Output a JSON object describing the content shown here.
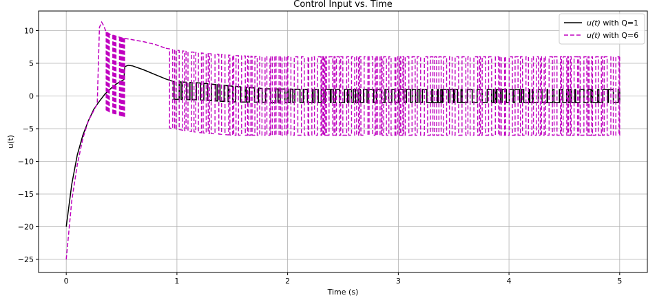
{
  "chart_data": {
    "type": "line",
    "title": "Control Input vs. Time",
    "xlabel": "Time (s)",
    "ylabel": "u(t)",
    "xlim": [
      -0.25,
      5.25
    ],
    "ylim": [
      -27,
      13
    ],
    "xticks": [
      0,
      1,
      2,
      3,
      4,
      5
    ],
    "yticks": [
      10,
      5,
      0,
      -5,
      -10,
      -15,
      -20,
      -25
    ],
    "ytick_labels": [
      "10",
      "5",
      "0",
      "−5",
      "−10",
      "−15",
      "−20",
      "−25"
    ],
    "grid": true,
    "legend_position": "top-right",
    "series": [
      {
        "name": "u(t) with Q=1",
        "legend_math": "u(t)",
        "legend_suffix": " with Q=1",
        "color": "#000000",
        "style": "solid",
        "smooth_points": [
          [
            0,
            -20
          ],
          [
            0.05,
            -13.5
          ],
          [
            0.1,
            -9
          ],
          [
            0.15,
            -6
          ],
          [
            0.2,
            -3.8
          ],
          [
            0.25,
            -2
          ],
          [
            0.3,
            -0.8
          ],
          [
            0.35,
            0.3
          ],
          [
            0.4,
            1.1
          ],
          [
            0.45,
            1.8
          ],
          [
            0.5,
            2.3
          ],
          [
            0.52,
            2.5
          ],
          [
            0.53,
            4.5
          ],
          [
            0.56,
            4.7
          ],
          [
            0.6,
            4.6
          ],
          [
            0.7,
            4
          ],
          [
            0.8,
            3.3
          ],
          [
            0.9,
            2.6
          ],
          [
            0.97,
            2.2
          ]
        ],
        "switching_envelope": {
          "t_start": 0.97,
          "t_end": 5.0,
          "upper": [
            [
              0.97,
              2.2
            ],
            [
              1.2,
              2.0
            ],
            [
              1.5,
              1.5
            ],
            [
              1.8,
              1.1
            ],
            [
              2.2,
              1.0
            ],
            [
              5.0,
              1.0
            ]
          ],
          "lower": [
            [
              0.97,
              -0.5
            ],
            [
              1.2,
              -0.6
            ],
            [
              1.5,
              -0.9
            ],
            [
              2.0,
              -1.0
            ],
            [
              5.0,
              -1.0
            ]
          ]
        }
      },
      {
        "name": "u(t) with Q=6",
        "legend_math": "u(t)",
        "legend_suffix": " with Q=6",
        "color": "#bf00bf",
        "style": "dashed",
        "smooth_points": [
          [
            0,
            -25
          ],
          [
            0.05,
            -16
          ],
          [
            0.1,
            -10.5
          ],
          [
            0.15,
            -6.5
          ],
          [
            0.2,
            -3.8
          ],
          [
            0.25,
            -2.2
          ],
          [
            0.28,
            -1.2
          ],
          [
            0.3,
            10.5
          ],
          [
            0.32,
            11.3
          ],
          [
            0.34,
            10.7
          ],
          [
            0.36,
            9.8
          ],
          [
            0.4,
            9.4
          ],
          [
            0.5,
            8.9
          ],
          [
            0.6,
            8.6
          ],
          [
            0.7,
            8.3
          ],
          [
            0.8,
            7.9
          ],
          [
            0.9,
            7.3
          ]
        ],
        "chatter_bursts": [
          [
            0.36,
            0.39,
            -2.5
          ],
          [
            0.42,
            0.45,
            -2.8
          ],
          [
            0.48,
            0.53,
            -3.3
          ]
        ],
        "switching_envelope": {
          "t_start": 0.9,
          "t_end": 5.0,
          "upper": [
            [
              0.9,
              7.3
            ],
            [
              1.0,
              7.0
            ],
            [
              1.2,
              6.6
            ],
            [
              1.5,
              6.2
            ],
            [
              1.8,
              6.0
            ],
            [
              5.0,
              6.0
            ]
          ],
          "lower": [
            [
              0.9,
              -4.8
            ],
            [
              1.0,
              -5.1
            ],
            [
              1.2,
              -5.6
            ],
            [
              1.5,
              -6.0
            ],
            [
              5.0,
              -6.0
            ]
          ]
        }
      }
    ]
  }
}
